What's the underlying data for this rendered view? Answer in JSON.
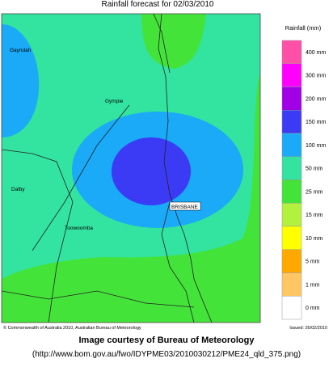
{
  "title": "Rainfall forecast for 02/03/2010",
  "places": [
    "Gayndah",
    "Gympie",
    "Dalby",
    "Toowoomba",
    "BRISBANE"
  ],
  "legend": {
    "title": "Rainfall (mm)",
    "items": [
      {
        "label": "400 mm",
        "color": "#ff4fa7"
      },
      {
        "label": "300 mm",
        "color": "#ff00ff"
      },
      {
        "label": "200 mm",
        "color": "#a100e6"
      },
      {
        "label": "150 mm",
        "color": "#3b3bf5"
      },
      {
        "label": "100 mm",
        "color": "#1aaaf8"
      },
      {
        "label": "50 mm",
        "color": "#33e3a0"
      },
      {
        "label": "25 mm",
        "color": "#44e339"
      },
      {
        "label": "15 mm",
        "color": "#b2f23f"
      },
      {
        "label": "10 mm",
        "color": "#ffff00"
      },
      {
        "label": "5 mm",
        "color": "#ffa800"
      },
      {
        "label": "1 mm",
        "color": "#ffc763"
      },
      {
        "label": "0 mm",
        "color": "#ffffff"
      }
    ]
  },
  "copyright": "© Commonwealth of Australia 2010, Australian Bureau of Meteorology",
  "issued": "Issued: 26/02/2010",
  "caption": "Image courtesy of Bureau of Meteorology",
  "url": "(http://www.bom.gov.au/fwo/IDYPME03/2010030212/PME24_qld_375.png)"
}
